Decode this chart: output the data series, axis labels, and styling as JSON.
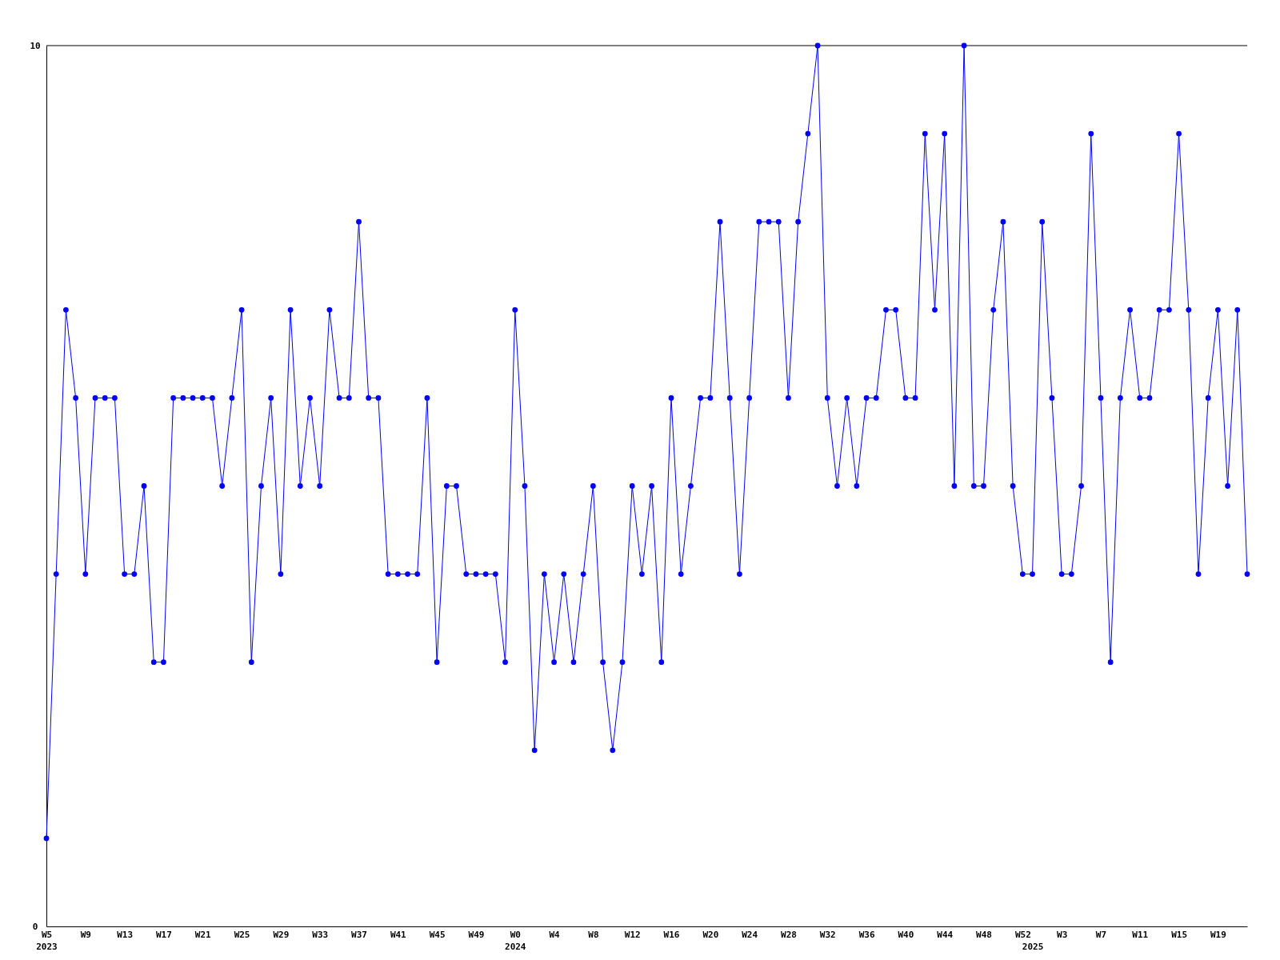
{
  "chart_data": {
    "type": "line",
    "categories": [
      "W5\n2023",
      null,
      null,
      null,
      "W9",
      null,
      null,
      null,
      "W13",
      null,
      null,
      null,
      "W17",
      null,
      null,
      null,
      "W21",
      null,
      null,
      null,
      "W25",
      null,
      null,
      null,
      "W29",
      null,
      null,
      null,
      "W33",
      null,
      null,
      null,
      "W37",
      null,
      null,
      null,
      "W41",
      null,
      null,
      null,
      "W45",
      null,
      null,
      null,
      "W49",
      null,
      null,
      null,
      "W0\n2024",
      null,
      null,
      null,
      "W4",
      null,
      null,
      null,
      "W8",
      null,
      null,
      null,
      "W12",
      null,
      null,
      null,
      "W16",
      null,
      null,
      null,
      "W20",
      null,
      null,
      null,
      "W24",
      null,
      null,
      null,
      "W28",
      null,
      null,
      null,
      "W32",
      null,
      null,
      null,
      "W36",
      null,
      null,
      null,
      "W40",
      null,
      null,
      null,
      "W44",
      null,
      null,
      null,
      "W48",
      null,
      null,
      null,
      "W52",
      "\n2025",
      null,
      null,
      "W3",
      null,
      null,
      null,
      "W7",
      null,
      null,
      null,
      "W11",
      null,
      null,
      null,
      "W15",
      null,
      null,
      null,
      "W19",
      null,
      null,
      null
    ],
    "series": [
      {
        "color": "#0000ff",
        "values": [
          1,
          4,
          7,
          6,
          4,
          6,
          6,
          6,
          4,
          4,
          5,
          3,
          3,
          6,
          6,
          6,
          6,
          6,
          5,
          6,
          7,
          3,
          5,
          6,
          4,
          7,
          5,
          6,
          5,
          7,
          6,
          6,
          8,
          6,
          6,
          4,
          4,
          4,
          4,
          6,
          3,
          5,
          5,
          4,
          4,
          4,
          4,
          3,
          7,
          5,
          2,
          4,
          3,
          4,
          3,
          4,
          5,
          3,
          2,
          3,
          5,
          4,
          5,
          3,
          6,
          4,
          5,
          6,
          6,
          8,
          6,
          4,
          6,
          8,
          8,
          8,
          6,
          8,
          9,
          10,
          6,
          5,
          6,
          5,
          6,
          6,
          7,
          7,
          6,
          6,
          9,
          7,
          9,
          5,
          10,
          5,
          5,
          7,
          8,
          5,
          4,
          4,
          8,
          6,
          4,
          4,
          5,
          9,
          6,
          3,
          6,
          7,
          6,
          6,
          7,
          7,
          9,
          7,
          4,
          6,
          7,
          5,
          7,
          4
        ]
      }
    ],
    "ylim": [
      0,
      10
    ],
    "yticks": [
      0,
      10
    ],
    "marker": "circle"
  }
}
